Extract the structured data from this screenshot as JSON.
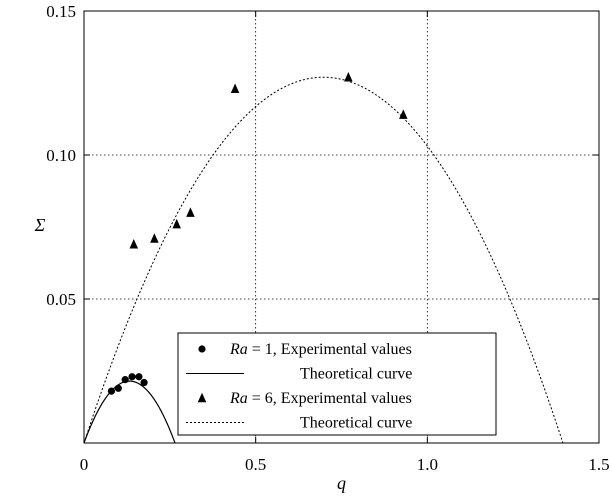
{
  "chart_data": {
    "type": "scatter",
    "xlabel": "q",
    "ylabel": "Σ",
    "xlim": [
      0,
      1.5
    ],
    "ylim": [
      0,
      0.15
    ],
    "grid": true,
    "grid_style": "dotted",
    "x_ticks": [
      {
        "value": 0,
        "label": "0"
      },
      {
        "value": 0.5,
        "label": "0.5"
      },
      {
        "value": 1.0,
        "label": "1.0"
      },
      {
        "value": 1.5,
        "label": "1.5"
      }
    ],
    "y_ticks": [
      {
        "value": 0.05,
        "label": "0.05"
      },
      {
        "value": 0.1,
        "label": "0.10"
      },
      {
        "value": 0.15,
        "label": "0.15"
      }
    ],
    "legend_position": "bottom-center",
    "series": [
      {
        "legend_prefix": "Ra",
        "legend_suffix": " = 1, Experimental values",
        "marker": "circle",
        "color": "#000000",
        "points": [
          {
            "x": 0.08,
            "y": 0.018
          },
          {
            "x": 0.1,
            "y": 0.019
          },
          {
            "x": 0.12,
            "y": 0.022
          },
          {
            "x": 0.14,
            "y": 0.023
          },
          {
            "x": 0.16,
            "y": 0.023
          },
          {
            "x": 0.175,
            "y": 0.021
          }
        ]
      },
      {
        "legend_label": "Theoretical curve",
        "line_style": "solid",
        "color": "#000000",
        "curve": {
          "formula": "parabola",
          "x_roots": [
            0,
            0.265
          ],
          "peak_y": 0.0215
        }
      },
      {
        "legend_prefix": "Ra",
        "legend_suffix": " = 6, Experimental values",
        "marker": "triangle",
        "color": "#000000",
        "points": [
          {
            "x": 0.145,
            "y": 0.069
          },
          {
            "x": 0.205,
            "y": 0.071
          },
          {
            "x": 0.27,
            "y": 0.076
          },
          {
            "x": 0.31,
            "y": 0.08
          },
          {
            "x": 0.44,
            "y": 0.123
          },
          {
            "x": 0.77,
            "y": 0.127
          },
          {
            "x": 0.93,
            "y": 0.114
          }
        ]
      },
      {
        "legend_label": "Theoretical curve",
        "line_style": "dotted",
        "color": "#000000",
        "curve": {
          "formula": "parabola",
          "x_roots": [
            0,
            1.395
          ],
          "peak_y": 0.127
        }
      }
    ]
  }
}
